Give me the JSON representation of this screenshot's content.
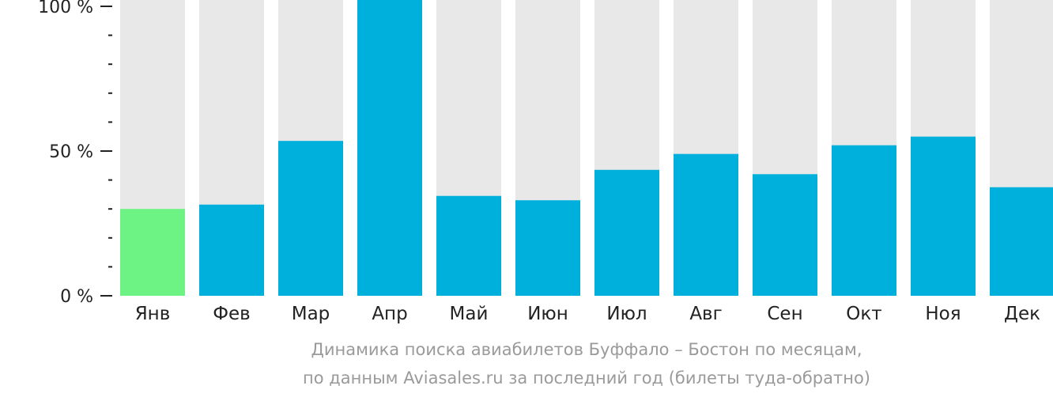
{
  "chart_data": {
    "type": "bar",
    "categories": [
      "Янв",
      "Фев",
      "Мар",
      "Апр",
      "Май",
      "Июн",
      "Июл",
      "Авг",
      "Сен",
      "Окт",
      "Ноя",
      "Дек"
    ],
    "values": [
      30,
      31.5,
      53.5,
      100,
      34.5,
      33,
      43.5,
      49,
      42,
      52,
      55,
      37.5
    ],
    "highlight_index": 0,
    "ylim": [
      0,
      100
    ],
    "yticks": [
      {
        "value": 0,
        "label": "0 %"
      },
      {
        "value": 50,
        "label": "50 %"
      },
      {
        "value": 100,
        "label": "100 %"
      }
    ],
    "minor_tick_step": 10,
    "colors": {
      "bar": "#00b0dc",
      "highlight": "#6cf383",
      "track": "#e8e8e8",
      "axis_text": "#222222"
    }
  },
  "caption": {
    "line1": "Динамика поиска авиабилетов Буффало – Бостон по месяцам,",
    "line2": "по данным Aviasales.ru за последний год (билеты туда-обратно)"
  }
}
